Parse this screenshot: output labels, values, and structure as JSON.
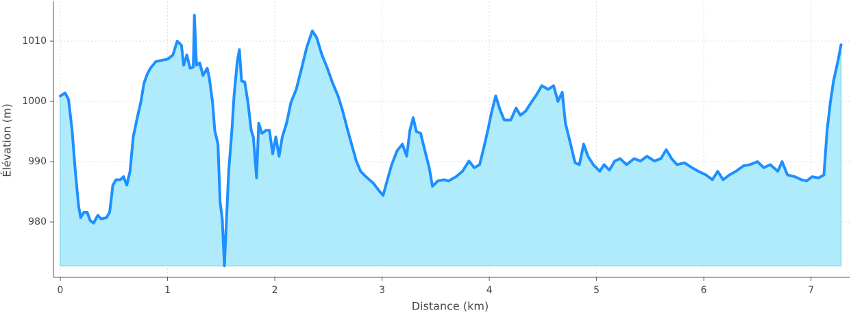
{
  "chart_data": {
    "type": "area",
    "xlabel": "Distance (km)",
    "ylabel": "Élévation (m)",
    "xlim": [
      -0.064,
      7.36
    ],
    "ylim": [
      970.8,
      1016.6
    ],
    "xticks": [
      0,
      1,
      2,
      3,
      4,
      5,
      6,
      7
    ],
    "yticks": [
      980,
      990,
      1000,
      1010
    ],
    "grid": true,
    "color": "#1e8fff",
    "fill_color": "#b0ebfb",
    "x": [
      0,
      0.045,
      0.077,
      0.11,
      0.14,
      0.17,
      0.19,
      0.22,
      0.25,
      0.28,
      0.31,
      0.35,
      0.38,
      0.43,
      0.46,
      0.49,
      0.52,
      0.56,
      0.59,
      0.62,
      0.65,
      0.68,
      0.72,
      0.75,
      0.78,
      0.81,
      0.84,
      0.89,
      0.94,
      1.0,
      1.05,
      1.09,
      1.13,
      1.15,
      1.18,
      1.21,
      1.24,
      1.25,
      1.27,
      1.3,
      1.33,
      1.37,
      1.39,
      1.42,
      1.44,
      1.47,
      1.49,
      1.51,
      1.53,
      1.55,
      1.57,
      1.6,
      1.62,
      1.65,
      1.67,
      1.69,
      1.72,
      1.75,
      1.78,
      1.8,
      1.83,
      1.85,
      1.88,
      1.92,
      1.95,
      1.98,
      2.01,
      2.04,
      2.07,
      2.11,
      2.15,
      2.2,
      2.25,
      2.3,
      2.35,
      2.39,
      2.44,
      2.49,
      2.54,
      2.59,
      2.63,
      2.68,
      2.73,
      2.76,
      2.8,
      2.85,
      2.92,
      2.98,
      3.01,
      3.05,
      3.09,
      3.14,
      3.19,
      3.23,
      3.26,
      3.29,
      3.32,
      3.36,
      3.4,
      3.44,
      3.47,
      3.52,
      3.58,
      3.62,
      3.69,
      3.75,
      3.81,
      3.86,
      3.91,
      3.95,
      3.99,
      4.02,
      4.06,
      4.1,
      4.14,
      4.2,
      4.25,
      4.29,
      4.34,
      4.39,
      4.44,
      4.49,
      4.55,
      4.6,
      4.64,
      4.68,
      4.71,
      4.75,
      4.8,
      4.84,
      4.88,
      4.92,
      4.97,
      5.03,
      5.07,
      5.12,
      5.17,
      5.22,
      5.28,
      5.35,
      5.41,
      5.47,
      5.54,
      5.6,
      5.65,
      5.7,
      5.75,
      5.82,
      5.89,
      5.95,
      6.02,
      6.08,
      6.13,
      6.18,
      6.24,
      6.3,
      6.37,
      6.43,
      6.5,
      6.56,
      6.62,
      6.69,
      6.73,
      6.78,
      6.85,
      6.91,
      6.96,
      7.01,
      7.07,
      7.12,
      7.15,
      7.18,
      7.21,
      7.25,
      7.28
    ],
    "values": [
      1000.9,
      1001.4,
      1000.3,
      995.2,
      988.4,
      982.7,
      980.7,
      981.6,
      981.6,
      980.2,
      979.8,
      981.1,
      980.5,
      980.7,
      981.6,
      986.1,
      987.0,
      987.0,
      987.5,
      986.1,
      988.4,
      994.1,
      997.5,
      999.8,
      1003.0,
      1004.5,
      1005.5,
      1006.6,
      1006.8,
      1007.0,
      1007.7,
      1010.0,
      1009.3,
      1006.0,
      1007.7,
      1005.5,
      1005.7,
      1014.3,
      1006.0,
      1006.4,
      1004.3,
      1005.5,
      1003.8,
      999.8,
      995.2,
      992.9,
      983.3,
      980.5,
      972.7,
      980.5,
      988.4,
      995.2,
      1000.9,
      1006.6,
      1008.6,
      1003.4,
      1003.2,
      999.8,
      995.2,
      994.1,
      987.3,
      996.4,
      994.7,
      995.2,
      995.2,
      991.3,
      994.1,
      990.9,
      994.1,
      996.4,
      999.8,
      1002.0,
      1005.5,
      1009.1,
      1011.7,
      1010.6,
      1007.7,
      1005.5,
      1003.0,
      1000.9,
      998.6,
      995.2,
      992.0,
      990.1,
      988.4,
      987.5,
      986.4,
      985.0,
      984.4,
      987.0,
      989.5,
      991.8,
      992.9,
      990.9,
      995.2,
      997.3,
      995.0,
      994.7,
      991.8,
      989.0,
      985.9,
      986.8,
      987.0,
      986.8,
      987.5,
      988.4,
      990.1,
      989.0,
      989.5,
      992.4,
      995.5,
      998.1,
      1000.9,
      998.6,
      996.9,
      996.9,
      998.9,
      997.7,
      998.4,
      999.8,
      1001.1,
      1002.6,
      1002.0,
      1002.6,
      1000.0,
      1001.5,
      996.4,
      993.5,
      989.8,
      989.5,
      992.9,
      990.9,
      989.5,
      988.4,
      989.5,
      988.6,
      990.1,
      990.5,
      989.5,
      990.5,
      990.1,
      990.9,
      990.1,
      990.5,
      992.0,
      990.5,
      989.5,
      989.8,
      989.0,
      988.4,
      987.8,
      987.0,
      988.4,
      987.0,
      987.8,
      988.4,
      989.3,
      989.5,
      990.0,
      989.0,
      989.5,
      988.4,
      990.0,
      987.8,
      987.5,
      987.0,
      986.8,
      987.5,
      987.3,
      987.8,
      995.2,
      999.8,
      1003.4,
      1006.6,
      1009.4
    ]
  }
}
